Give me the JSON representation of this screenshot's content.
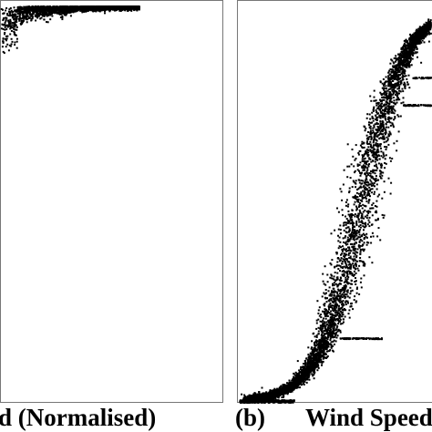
{
  "figure": {
    "panel_a_xlabel": "d (Normalised)",
    "panel_b_tag": "(b)",
    "panel_b_xlabel": "Wind Speed"
  },
  "chart_data": [
    {
      "type": "scatter",
      "panel": "a",
      "xlabel": "d (Normalised)",
      "ylabel": "",
      "title": "",
      "grid": false,
      "description_points": "dense scatter saturating near the top edge, spreading toward the left",
      "series": [
        {
          "points": [
            [
              0.0,
              0.94
            ],
            [
              0.05,
              0.97
            ],
            [
              0.15,
              0.985
            ],
            [
              0.3,
              0.99
            ],
            [
              0.5,
              0.995
            ],
            [
              0.6,
              0.997
            ]
          ]
        }
      ]
    },
    {
      "type": "scatter",
      "panel": "b",
      "xlabel": "Wind Speed",
      "ylabel": "",
      "title": "",
      "grid": false,
      "series": [
        {
          "points": [
            [
              0.0,
              0.0
            ],
            [
              0.15,
              0.02
            ],
            [
              0.35,
              0.1
            ],
            [
              0.5,
              0.3
            ],
            [
              0.6,
              0.55
            ],
            [
              0.7,
              0.78
            ],
            [
              0.8,
              0.93
            ],
            [
              0.9,
              1.0
            ]
          ]
        }
      ]
    }
  ]
}
